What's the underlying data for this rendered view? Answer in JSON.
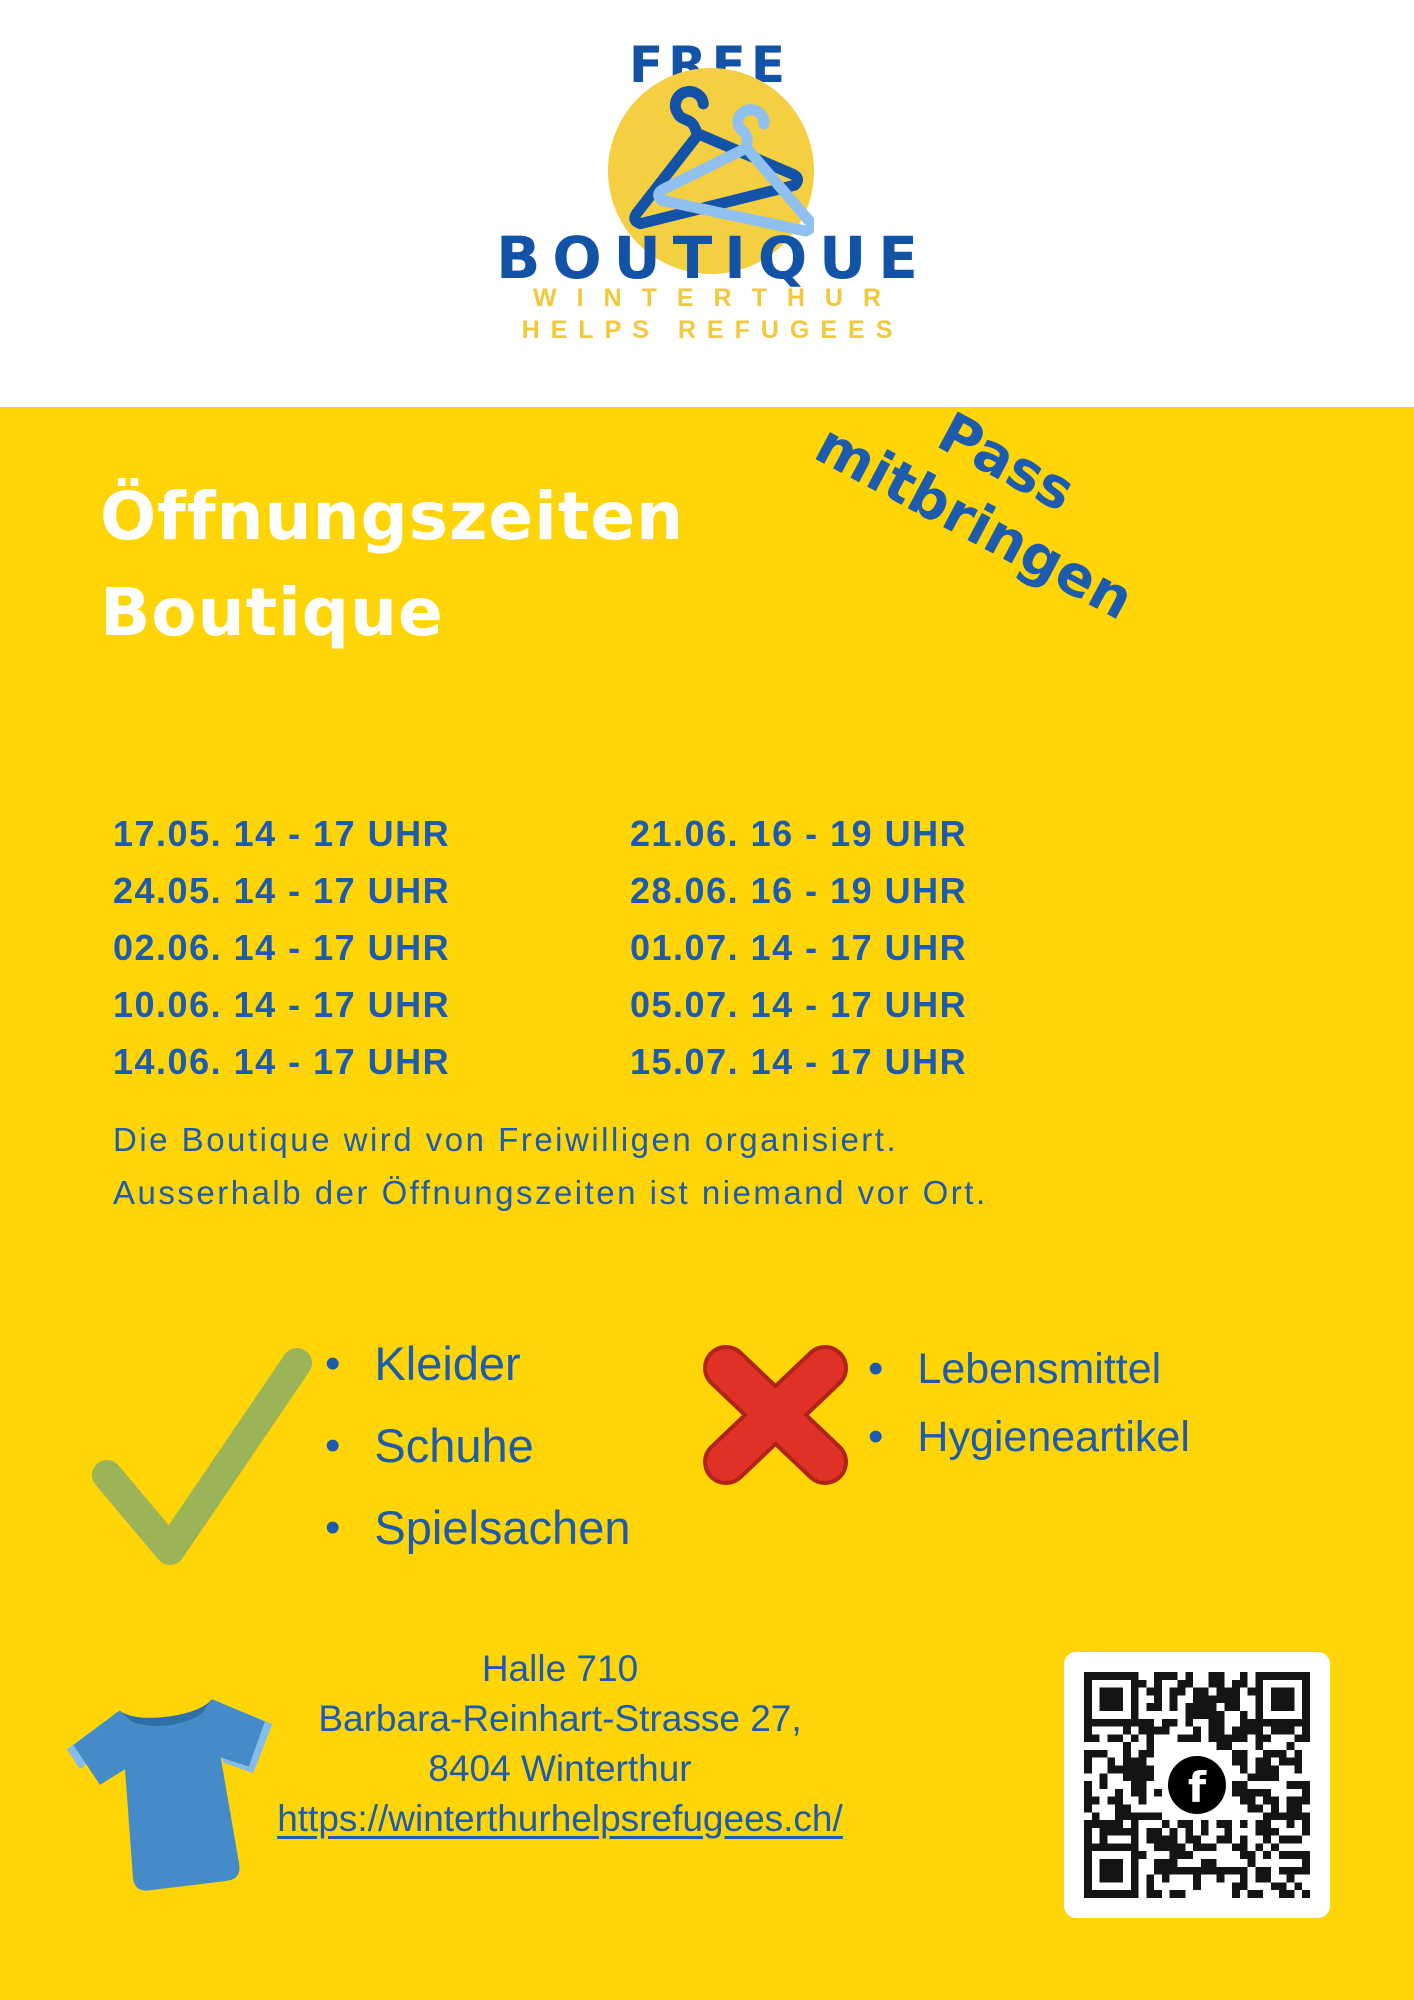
{
  "logo": {
    "top": "FREE",
    "name": "BOUTIQUE",
    "subtitle1": "WINTERTHUR",
    "subtitle2": "HELPS REFUGEES"
  },
  "ribbon": {
    "line1": "Pass",
    "line2": "mitbringen"
  },
  "heading": {
    "line1": "Öffnungszeiten",
    "line2": "Boutique"
  },
  "schedule": {
    "col1": [
      "17.05. 14 - 17 UHR",
      "24.05. 14 - 17 UHR",
      "02.06. 14 - 17 UHR",
      "10.06. 14 - 17 UHR",
      "14.06. 14 - 17 UHR"
    ],
    "col2": [
      "21.06. 16 - 19 UHR",
      "28.06. 16 - 19 UHR",
      "01.07. 14 - 17 UHR",
      "05.07. 14 - 17 UHR",
      "15.07. 14 - 17 UHR"
    ]
  },
  "note": {
    "line1": "Die Boutique wird von Freiwilligen organisiert.",
    "line2": "Ausserhalb der Öffnungszeiten ist niemand vor Ort."
  },
  "accepted": {
    "items": [
      "Kleider",
      "Schuhe",
      "Spielsachen"
    ]
  },
  "rejected": {
    "items": [
      "Lebensmittel",
      "Hygieneartikel"
    ]
  },
  "footer": {
    "venue": "Halle 710",
    "street": "Barbara-Reinhart-Strasse 27,",
    "city": "8404 Winterthur",
    "link": "https://winterthurhelpsrefugees.ch/"
  },
  "icons": {
    "hangers": "clothes-hangers",
    "check": "green-checkmark",
    "cross": "red-x",
    "tshirt": "blue-tshirt",
    "qr": "qr-code",
    "facebook_letter": "f",
    "bullet": "•"
  },
  "colors": {
    "yellow": "#FFD508",
    "logo-blue": "#1253A8",
    "logo-yellow": "#F2C93D",
    "blue": "#1C5BAD",
    "light-blue": "#8FC0F0",
    "green": "#9CB458",
    "red": "#E03127",
    "tshirt": "#458BC8",
    "tshirt-light": "#85BCE8"
  },
  "qr": {
    "modules": 29,
    "seed": 7
  }
}
